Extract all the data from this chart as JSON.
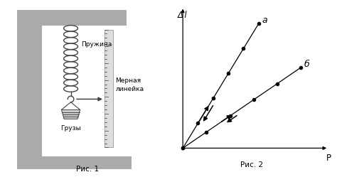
{
  "fig_width": 4.74,
  "fig_height": 2.49,
  "dpi": 100,
  "bg_color": "#ffffff",
  "fig1_caption": "Рис. 1",
  "fig2_caption": "Рис. 2",
  "frame_color": "#aaaaaa",
  "frame_dark": "#888888",
  "spring_label": "Пружина",
  "ruler_label": "Мерная\nлинейка",
  "weights_label": "Грузы",
  "line_a_points_x": [
    0.0,
    0.18,
    0.36,
    0.54,
    0.72,
    0.9
  ],
  "line_a_points_y": [
    0.0,
    0.34,
    0.68,
    1.02,
    1.36,
    1.7
  ],
  "line_b_points_x": [
    0.0,
    0.28,
    0.56,
    0.84,
    1.12,
    1.4
  ],
  "line_b_points_y": [
    0.0,
    0.22,
    0.44,
    0.66,
    0.88,
    1.1
  ],
  "label_a": "а",
  "label_b": "б",
  "ylabel": "Δ l",
  "xlabel": "P"
}
